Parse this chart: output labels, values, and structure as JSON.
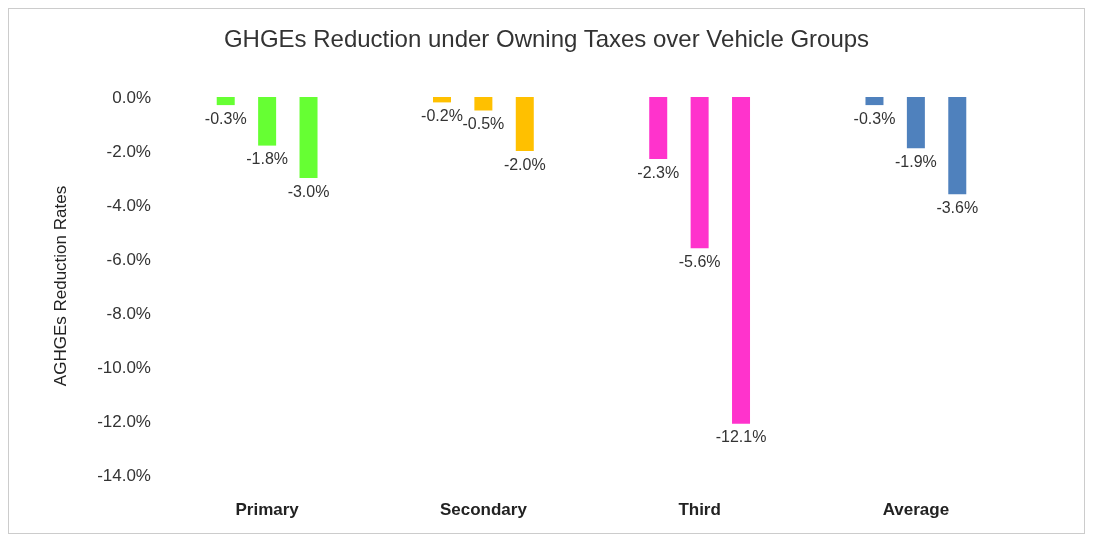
{
  "chart_data": {
    "type": "bar",
    "title": "GHGEs Reduction under Owning Taxes over Vehicle Groups",
    "ylabel": "AGHGEs Reduction Rates",
    "categories": [
      "Primary",
      "Secondary",
      "Third",
      "Average"
    ],
    "series": [
      {
        "colors": [
          "#66ff33",
          "#ffc000",
          "#ff33cc",
          "#4f81bd"
        ],
        "values": [
          -0.3,
          -0.2,
          -2.3,
          -0.3
        ],
        "value_labels": [
          "-0.3%",
          "-0.2%",
          "-2.3%",
          "-0.3%"
        ]
      },
      {
        "colors": [
          "#66ff33",
          "#ffc000",
          "#ff33cc",
          "#4f81bd"
        ],
        "values": [
          -1.8,
          -0.5,
          -5.6,
          -1.9
        ],
        "value_labels": [
          "-1.8%",
          "-0.5%",
          "-5.6%",
          "-1.9%"
        ]
      },
      {
        "colors": [
          "#66ff33",
          "#ffc000",
          "#ff33cc",
          "#4f81bd"
        ],
        "values": [
          -3.0,
          -2.0,
          -12.1,
          -3.6
        ],
        "value_labels": [
          "-3.0%",
          "-2.0%",
          "-12.1%",
          "-3.6%"
        ]
      }
    ],
    "ylim": [
      -14,
      0
    ],
    "yticks": [
      {
        "value": 0,
        "label": "0.0%"
      },
      {
        "value": -2,
        "label": "-2.0%"
      },
      {
        "value": -4,
        "label": "-4.0%"
      },
      {
        "value": -6,
        "label": "-6.0%"
      },
      {
        "value": -8,
        "label": "-8.0%"
      },
      {
        "value": -10,
        "label": "-10.0%"
      },
      {
        "value": -12,
        "label": "-12.0%"
      },
      {
        "value": -14,
        "label": "-14.0%"
      }
    ]
  }
}
